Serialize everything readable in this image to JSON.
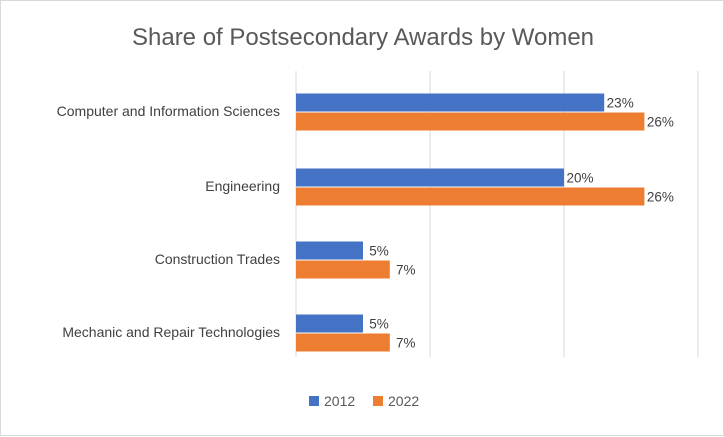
{
  "chart_data": {
    "type": "bar",
    "orientation": "horizontal",
    "title": "Share of Postsecondary Awards by Women",
    "categories": [
      "Computer and Information Sciences",
      "Engineering",
      "Construction Trades",
      "Mechanic and Repair Technologies"
    ],
    "series": [
      {
        "name": "2012",
        "color": "#4472c4",
        "values": [
          23,
          20,
          5,
          5
        ],
        "labels": [
          "23%",
          "20%",
          "5%",
          "5%"
        ]
      },
      {
        "name": "2022",
        "color": "#ed7d31",
        "values": [
          26,
          26,
          7,
          7
        ],
        "labels": [
          "26%",
          "26%",
          "7%",
          "7%"
        ]
      }
    ],
    "xlim": [
      0,
      30
    ],
    "grid": true,
    "legend_position": "bottom",
    "xlabel": "",
    "ylabel": ""
  }
}
